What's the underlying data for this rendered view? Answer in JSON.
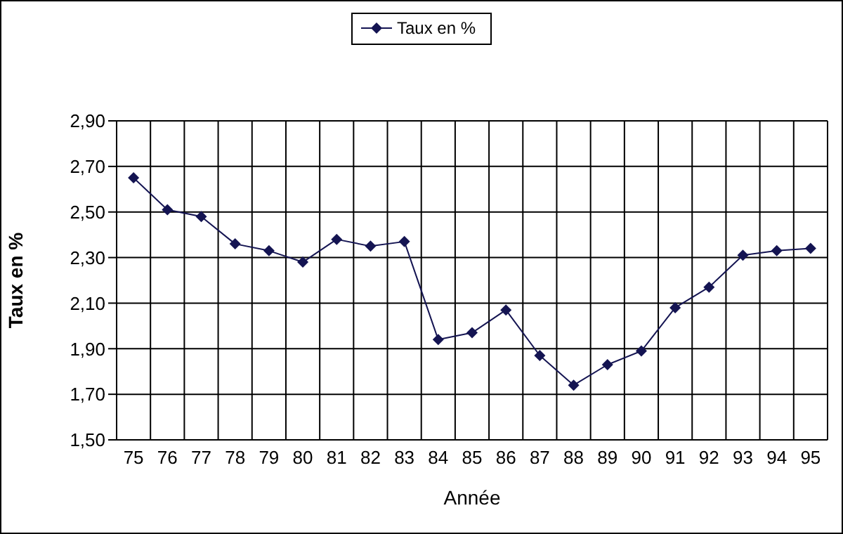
{
  "chart_data": {
    "type": "line",
    "xlabel": "Année",
    "ylabel": "Taux en %",
    "categories": [
      "75",
      "76",
      "77",
      "78",
      "79",
      "80",
      "81",
      "82",
      "83",
      "84",
      "85",
      "86",
      "87",
      "88",
      "89",
      "90",
      "91",
      "92",
      "93",
      "94",
      "95"
    ],
    "series": [
      {
        "name": "Taux en %",
        "color": "#141452",
        "values": [
          2.65,
          2.51,
          2.48,
          2.36,
          2.33,
          2.28,
          2.38,
          2.35,
          2.37,
          1.94,
          1.97,
          2.07,
          1.87,
          1.74,
          1.83,
          1.89,
          2.08,
          2.17,
          2.31,
          2.33,
          2.34
        ]
      }
    ],
    "ylim": [
      1.5,
      2.9
    ],
    "yticks": [
      {
        "value": 1.5,
        "label": "1,50"
      },
      {
        "value": 1.7,
        "label": "1,70"
      },
      {
        "value": 1.9,
        "label": "1,90"
      },
      {
        "value": 2.1,
        "label": "2,10"
      },
      {
        "value": 2.3,
        "label": "2,30"
      },
      {
        "value": 2.5,
        "label": "2,50"
      },
      {
        "value": 2.7,
        "label": "2,70"
      },
      {
        "value": 2.9,
        "label": "2,90"
      }
    ],
    "grid": true,
    "legend": "top",
    "marker": "diamond",
    "line_style": "solid"
  }
}
